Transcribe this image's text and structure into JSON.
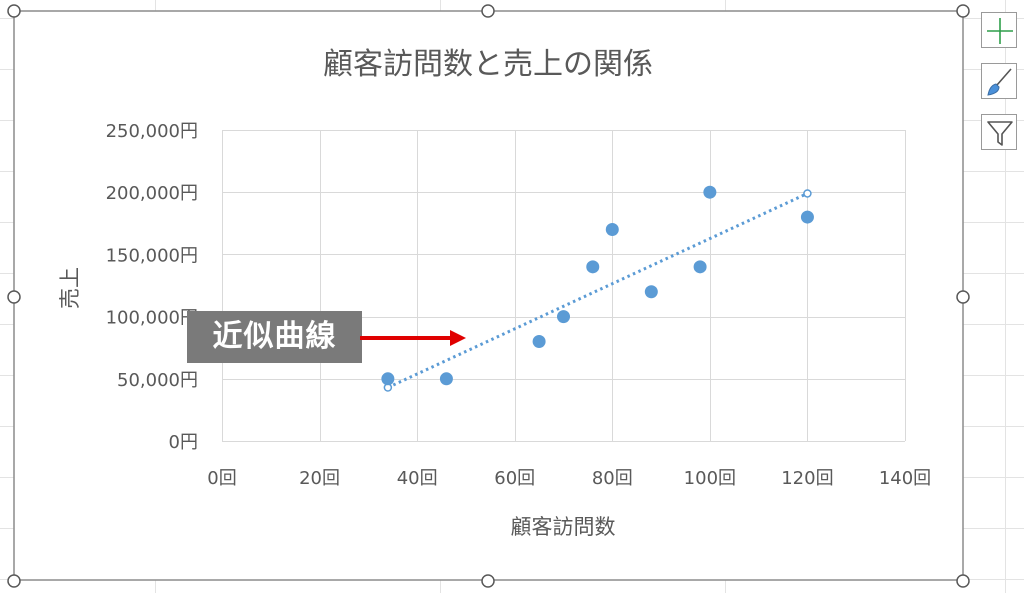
{
  "chart_data": {
    "type": "scatter",
    "title": "顧客訪問数と売上の関係",
    "xlabel": "顧客訪問数",
    "ylabel": "売上",
    "xlim": [
      0,
      140
    ],
    "ylim": [
      0,
      250000
    ],
    "x_ticks": [
      0,
      20,
      40,
      60,
      80,
      100,
      120,
      140
    ],
    "y_ticks": [
      0,
      50000,
      100000,
      150000,
      200000,
      250000
    ],
    "x_tick_labels": [
      "0回",
      "20回",
      "40回",
      "60回",
      "80回",
      "100回",
      "120回",
      "140回"
    ],
    "y_tick_labels": [
      "0円",
      "50,000円",
      "100,000円",
      "150,000円",
      "200,000円",
      "250,000円"
    ],
    "grid": true,
    "legend": false,
    "series": [
      {
        "x": [
          34,
          46,
          65,
          70,
          76,
          80,
          88,
          98,
          100,
          120
        ],
        "y": [
          50000,
          50000,
          80000,
          100000,
          140000,
          170000,
          120000,
          140000,
          200000,
          180000
        ],
        "color": "#5b9bd5"
      }
    ],
    "trendline": {
      "type": "linear",
      "x": [
        34,
        120
      ],
      "y": [
        43000,
        199000
      ],
      "color": "#5b9bd5",
      "style": "dotted"
    }
  },
  "annotation": {
    "label": "近似曲線",
    "color": "#7a7a7a",
    "arrow_color": "#e00000"
  },
  "side_buttons": {
    "elements_icon": "plus-icon",
    "styles_icon": "paintbrush-icon",
    "filters_icon": "funnel-icon"
  }
}
